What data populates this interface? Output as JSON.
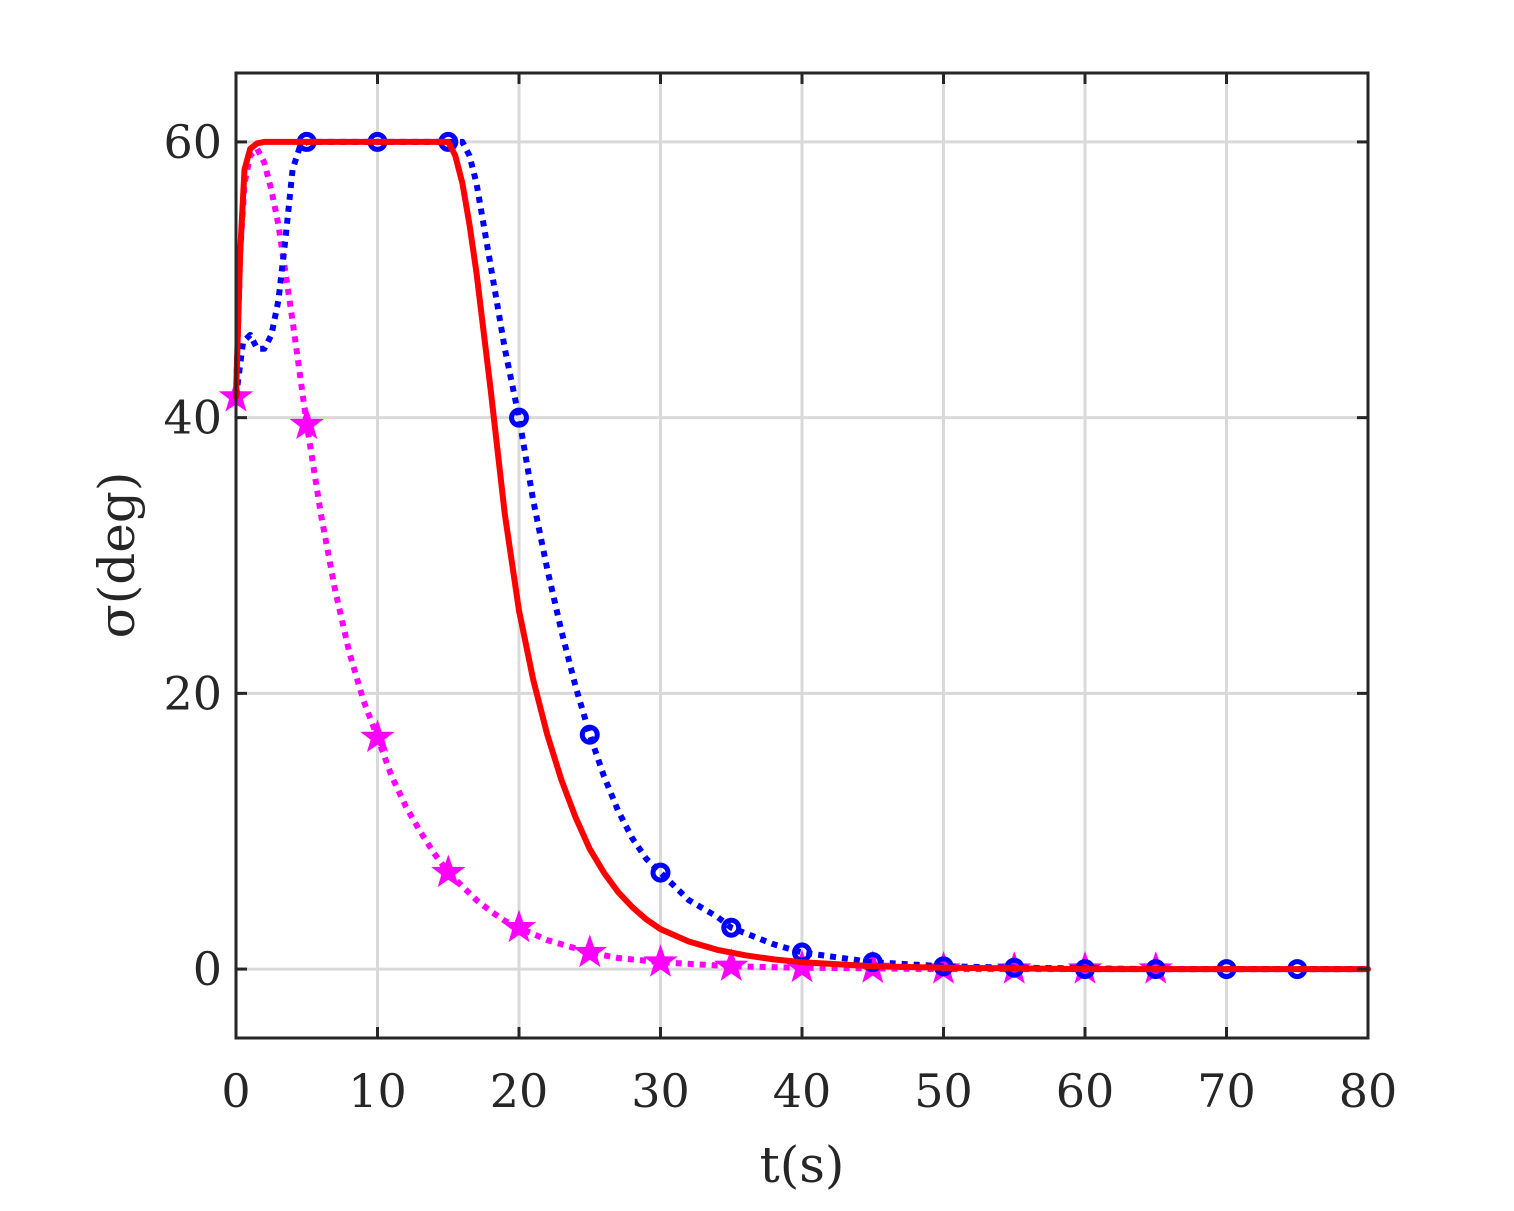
{
  "chart_data": {
    "type": "line",
    "xlabel": "t(s)",
    "ylabel": "σ(deg)",
    "xlim": [
      0,
      80
    ],
    "ylim": [
      -5,
      65
    ],
    "xticks": [
      0,
      10,
      20,
      30,
      40,
      50,
      60,
      70,
      80
    ],
    "yticks": [
      0,
      20,
      40,
      60
    ],
    "xtick_labels": [
      "0",
      "10",
      "20",
      "30",
      "40",
      "50",
      "60",
      "70",
      "80"
    ],
    "ytick_labels": [
      "0",
      "20",
      "40",
      "60"
    ],
    "grid": true,
    "series": [
      {
        "color": "#ff0000",
        "style": "solid",
        "marker": "none",
        "x": [
          0,
          0.3,
          0.6,
          1.0,
          1.5,
          2,
          5,
          10,
          15,
          15.5,
          16,
          16.5,
          17,
          18,
          19,
          20,
          21,
          22,
          23,
          24,
          25,
          26,
          27,
          28,
          29,
          30,
          32,
          34,
          36,
          38,
          40,
          45,
          50,
          55,
          60,
          65,
          70,
          75,
          80
        ],
        "y": [
          41.5,
          52,
          58,
          59.5,
          59.9,
          60,
          60,
          60,
          60,
          59,
          57,
          54,
          50.5,
          42,
          33,
          26,
          21,
          17,
          13.7,
          11,
          8.7,
          7,
          5.6,
          4.5,
          3.6,
          2.9,
          2,
          1.4,
          1.0,
          0.7,
          0.5,
          0.2,
          0.1,
          0.05,
          0,
          0,
          0,
          0,
          0
        ]
      },
      {
        "color": "#0000ff",
        "style": "dotted",
        "marker": "circle",
        "x": [
          0,
          0.5,
          1,
          1.5,
          2,
          2.5,
          3,
          3.5,
          4,
          4.5,
          5,
          10,
          15,
          16,
          16.5,
          17,
          17.5,
          18,
          18.5,
          19,
          19.5,
          20,
          21,
          22,
          23,
          24,
          25,
          26,
          27,
          28,
          29,
          30,
          32,
          34,
          35,
          36,
          38,
          40,
          45,
          50,
          55,
          60,
          65,
          70,
          75,
          80
        ],
        "y": [
          41.5,
          45.5,
          46,
          45,
          45,
          46,
          48.5,
          53,
          58,
          59.6,
          60,
          60,
          60,
          60,
          59,
          57,
          54,
          51,
          48,
          45,
          42.5,
          40,
          34,
          29,
          24.5,
          20.5,
          17,
          14,
          11.5,
          9.5,
          8,
          7,
          5,
          3.8,
          3.0,
          2.6,
          1.8,
          1.2,
          0.5,
          0.2,
          0.1,
          0.05,
          0,
          0,
          0,
          0
        ],
        "markers_x": [
          5,
          10,
          15,
          20,
          25,
          30,
          35,
          40,
          45,
          50,
          55,
          60,
          65,
          70,
          75
        ],
        "markers_y": [
          60,
          60,
          60,
          40,
          17,
          7,
          3,
          1.2,
          0.5,
          0.2,
          0.1,
          0,
          0,
          0,
          0
        ]
      },
      {
        "color": "#ff00ff",
        "style": "dotted",
        "marker": "pentagram",
        "x": [
          0,
          0.3,
          0.6,
          1.0,
          1.5,
          2,
          2.5,
          3,
          3.5,
          4,
          5,
          6,
          7,
          8,
          9,
          10,
          11,
          12,
          13,
          14,
          15,
          16,
          17,
          18,
          19,
          20,
          22,
          24,
          25,
          27,
          30,
          35,
          40,
          45,
          50,
          55,
          60,
          65,
          70,
          75,
          80
        ],
        "y": [
          41.5,
          52,
          57,
          59,
          59.5,
          58.5,
          56.5,
          54,
          50.5,
          47,
          39.5,
          33,
          27.5,
          23,
          19.5,
          16.8,
          14,
          11.8,
          10,
          8.4,
          7,
          6,
          5,
          4.2,
          3.5,
          3,
          2.1,
          1.5,
          1.2,
          0.8,
          0.5,
          0.2,
          0.1,
          0.05,
          0,
          0,
          0,
          0,
          0,
          0,
          0
        ],
        "markers_x": [
          0,
          5,
          10,
          15,
          20,
          25,
          30,
          35,
          40,
          45,
          50,
          55,
          60,
          65
        ],
        "markers_y": [
          41.5,
          39.5,
          16.8,
          7,
          3,
          1.2,
          0.5,
          0.2,
          0.1,
          0.05,
          0,
          0,
          0,
          0
        ]
      }
    ]
  }
}
